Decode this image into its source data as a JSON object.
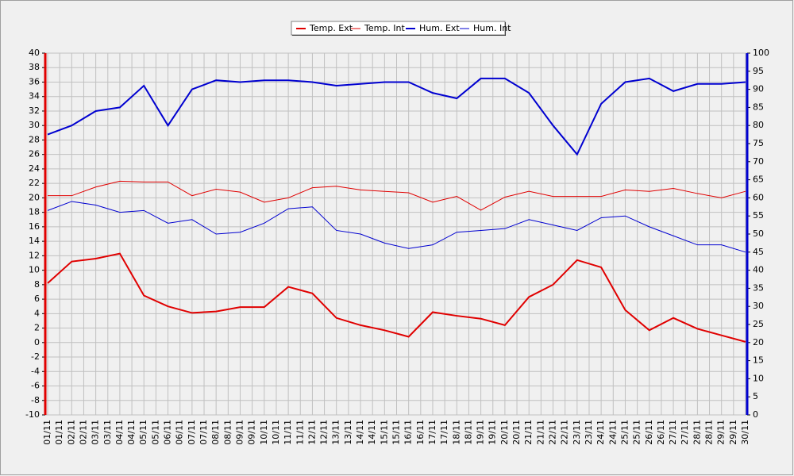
{
  "chart_data": {
    "type": "line",
    "categories": [
      "01/11",
      "02/11",
      "03/11",
      "04/11",
      "05/11",
      "06/11",
      "07/11",
      "08/11",
      "09/11",
      "10/11",
      "11/11",
      "12/11",
      "13/11",
      "14/11",
      "15/11",
      "16/11",
      "17/11",
      "18/11",
      "19/11",
      "20/11",
      "21/11",
      "22/11",
      "23/11",
      "24/11",
      "25/11",
      "26/11",
      "27/11",
      "28/11",
      "29/11",
      "30/11"
    ],
    "xtick_labels": [
      "01/11",
      "01/11",
      "02/11",
      "02/11",
      "03/11",
      "03/11",
      "04/11",
      "04/11",
      "05/11",
      "05/11",
      "06/11",
      "06/11",
      "07/11",
      "07/11",
      "08/11",
      "08/11",
      "09/11",
      "09/11",
      "10/11",
      "10/11",
      "11/11",
      "11/11",
      "12/11",
      "12/11",
      "13/11",
      "13/11",
      "14/11",
      "14/11",
      "15/11",
      "15/11",
      "16/11",
      "16/11",
      "17/11",
      "17/11",
      "18/11",
      "18/11",
      "19/11",
      "19/11",
      "20/11",
      "20/11",
      "21/11",
      "21/11",
      "22/11",
      "22/11",
      "23/11",
      "23/11",
      "24/11",
      "24/11",
      "25/11",
      "25/11",
      "26/11",
      "26/11",
      "27/11",
      "27/11",
      "28/11",
      "28/11",
      "29/11",
      "29/11",
      "30/11"
    ],
    "series": [
      {
        "name": "Temp. Ext",
        "color": "#e00000",
        "width": 2,
        "values": [
          8.2,
          11.2,
          11.6,
          12.3,
          6.5,
          5.0,
          4.1,
          4.3,
          4.9,
          4.9,
          7.7,
          6.8,
          3.4,
          2.4,
          1.7,
          0.8,
          4.2,
          3.7,
          3.3,
          2.4,
          6.3,
          8.0,
          11.4,
          10.4,
          4.5,
          1.7,
          3.4,
          1.9,
          1.0,
          0.1
        ]
      },
      {
        "name": "Temp. Int",
        "color": "#e00000",
        "width": 1,
        "values": [
          20.3,
          20.3,
          21.5,
          22.3,
          22.2,
          22.2,
          20.3,
          21.2,
          20.8,
          19.4,
          20.0,
          21.4,
          21.6,
          21.1,
          20.9,
          20.7,
          19.4,
          20.2,
          18.3,
          20.1,
          20.9,
          20.2,
          20.2,
          20.2,
          21.1,
          20.9,
          21.3,
          20.6,
          20.0,
          20.9
        ]
      },
      {
        "name": "Hum. Ext",
        "color": "#0000d0",
        "width": 2,
        "axis": "y2",
        "values": [
          77.5,
          80,
          84,
          85,
          91,
          80,
          90,
          92.5,
          92,
          92.5,
          92.5,
          92,
          91,
          91.5,
          92,
          92,
          89,
          87.5,
          93,
          93,
          89,
          80,
          72,
          86,
          92,
          93,
          89.5,
          91.5,
          91.5,
          92
        ]
      },
      {
        "name": "Hum. Int",
        "color": "#0000d0",
        "width": 1,
        "axis": "y2",
        "values": [
          56.5,
          59,
          58,
          56,
          56.5,
          53,
          54,
          50,
          50.5,
          53,
          57,
          57.5,
          51,
          50,
          47.5,
          46,
          47,
          50.5,
          51,
          51.5,
          54,
          52.5,
          51,
          54.5,
          55,
          52,
          49.5,
          47,
          47,
          45
        ]
      }
    ],
    "ylim": [
      -10,
      40
    ],
    "yticks": [
      -10,
      -8,
      -6,
      -4,
      -2,
      0,
      2,
      4,
      6,
      8,
      10,
      12,
      14,
      16,
      18,
      20,
      22,
      24,
      26,
      28,
      30,
      32,
      34,
      36,
      38,
      40
    ],
    "y2lim": [
      0,
      100
    ],
    "y2ticks": [
      0,
      5,
      10,
      15,
      20,
      25,
      30,
      35,
      40,
      45,
      50,
      55,
      60,
      65,
      70,
      75,
      80,
      85,
      90,
      95,
      100
    ],
    "grid": true
  }
}
